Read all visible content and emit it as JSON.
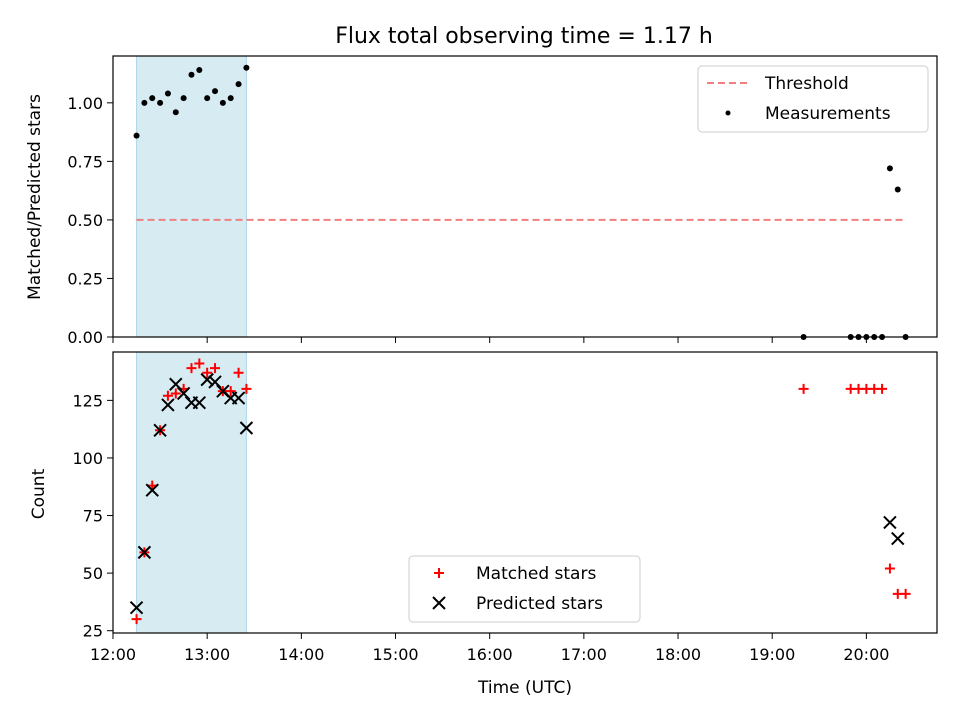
{
  "colors": {
    "shade": "#add8e6",
    "threshold": "#f08080",
    "matched": "#ff0000",
    "predicted": "#000000",
    "measurement": "#000000"
  },
  "chart_data": [
    {
      "type": "scatter",
      "title": "Flux total observing time = 1.17 h",
      "xlabel": "",
      "ylabel": "Matched/Predicted stars",
      "xlim": [
        "12:00",
        "20:45"
      ],
      "ylim": [
        0,
        1.2
      ],
      "x_ticks": [
        "12:00",
        "13:00",
        "14:00",
        "15:00",
        "16:00",
        "17:00",
        "18:00",
        "19:00",
        "20:00"
      ],
      "y_ticks": [
        "0.00",
        "0.25",
        "0.50",
        "0.75",
        "1.00"
      ],
      "shaded_span": [
        "12:15",
        "13:25"
      ],
      "legend_position": "top-right",
      "grid": false,
      "threshold": {
        "name": "Threshold",
        "x": [
          "12:15",
          "20:25"
        ],
        "value": 0.5
      },
      "series": [
        {
          "name": "Measurements",
          "x": [
            "12:15",
            "12:20",
            "12:25",
            "12:30",
            "12:35",
            "12:40",
            "12:45",
            "12:50",
            "12:55",
            "13:00",
            "13:05",
            "13:10",
            "13:15",
            "13:20",
            "13:25",
            "19:20",
            "19:50",
            "19:55",
            "20:00",
            "20:05",
            "20:10",
            "20:15",
            "20:20",
            "20:25"
          ],
          "values": [
            0.86,
            1.0,
            1.02,
            1.0,
            1.04,
            0.96,
            1.02,
            1.12,
            1.14,
            1.02,
            1.05,
            1.0,
            1.02,
            1.08,
            1.15,
            0.0,
            0.0,
            0.0,
            0.0,
            0.0,
            0.0,
            0.72,
            0.63,
            0.0
          ]
        }
      ]
    },
    {
      "type": "scatter",
      "title": "",
      "xlabel": "Time (UTC)",
      "ylabel": "Count",
      "xlim": [
        "12:00",
        "20:45"
      ],
      "ylim": [
        24,
        146
      ],
      "x_ticks": [
        "12:00",
        "13:00",
        "14:00",
        "15:00",
        "16:00",
        "17:00",
        "18:00",
        "19:00",
        "20:00"
      ],
      "y_ticks": [
        "25",
        "50",
        "75",
        "100",
        "125"
      ],
      "shaded_span": [
        "12:15",
        "13:25"
      ],
      "legend_position": "bottom-center",
      "grid": false,
      "series": [
        {
          "name": "Matched stars",
          "marker": "plus",
          "x": [
            "12:15",
            "12:20",
            "12:25",
            "12:30",
            "12:35",
            "12:40",
            "12:45",
            "12:50",
            "12:55",
            "13:00",
            "13:05",
            "13:10",
            "13:15",
            "13:20",
            "13:25",
            "19:20",
            "19:50",
            "19:55",
            "20:00",
            "20:05",
            "20:10",
            "20:15",
            "20:20",
            "20:25"
          ],
          "values": [
            30,
            59,
            88,
            112,
            127,
            128,
            130,
            139,
            141,
            137,
            139,
            129,
            129,
            137,
            130,
            130,
            130,
            130,
            130,
            130,
            130,
            52,
            41,
            41
          ]
        },
        {
          "name": "Predicted stars",
          "marker": "x",
          "x": [
            "12:15",
            "12:20",
            "12:25",
            "12:30",
            "12:35",
            "12:40",
            "12:45",
            "12:50",
            "12:55",
            "13:00",
            "13:05",
            "13:10",
            "13:15",
            "13:20",
            "13:25",
            "20:15",
            "20:20"
          ],
          "values": [
            35,
            59,
            86,
            112,
            123,
            132,
            128,
            124,
            124,
            134,
            133,
            129,
            126,
            126,
            113,
            72,
            65
          ]
        }
      ]
    }
  ]
}
